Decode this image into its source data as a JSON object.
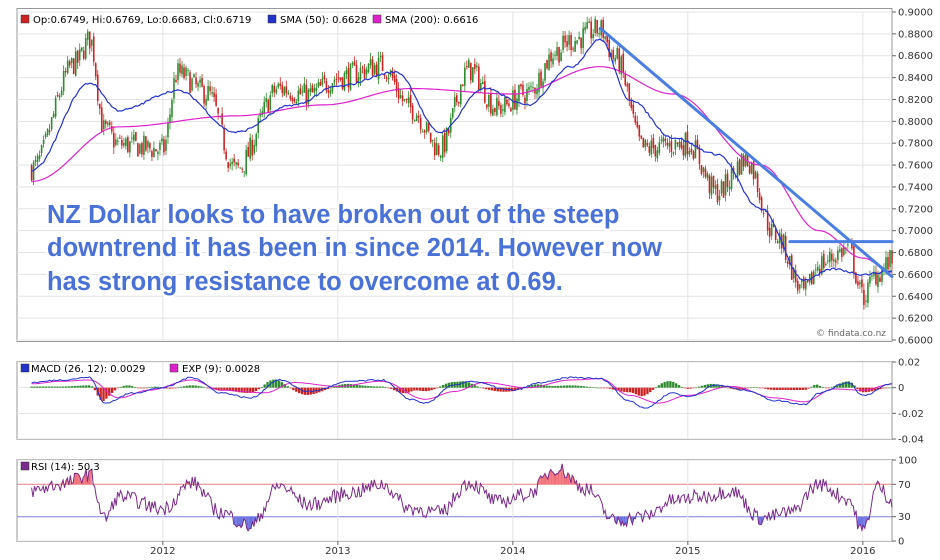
{
  "chart_data": [
    {
      "type": "line",
      "panel": "price",
      "series": [
        {
          "name": "Price",
          "color": "#cc2222",
          "up_color": "#2e8b2e",
          "x": [
            "2011-04",
            "2011-07",
            "2011-08",
            "2011-09",
            "2011-10",
            "2012-01",
            "2012-02",
            "2012-04",
            "2012-06",
            "2012-09",
            "2012-11",
            "2013-01",
            "2013-04",
            "2013-06",
            "2013-08",
            "2013-10",
            "2013-12",
            "2014-02",
            "2014-04",
            "2014-05",
            "2014-07",
            "2014-08",
            "2014-10",
            "2015-01",
            "2015-03",
            "2015-05",
            "2015-07",
            "2015-09",
            "2015-10",
            "2015-12",
            "2016-01",
            "2016-02",
            "2016-03"
          ],
          "values": [
            0.757,
            0.853,
            0.875,
            0.792,
            0.779,
            0.774,
            0.844,
            0.826,
            0.756,
            0.83,
            0.824,
            0.84,
            0.851,
            0.812,
            0.775,
            0.847,
            0.812,
            0.826,
            0.864,
            0.874,
            0.884,
            0.858,
            0.775,
            0.78,
            0.735,
            0.765,
            0.696,
            0.643,
            0.67,
            0.683,
            0.64,
            0.661,
            0.672
          ]
        },
        {
          "name": "SMA (50)",
          "color": "#2233cc",
          "x": [
            "2011-04",
            "2011-08",
            "2011-10",
            "2012-02",
            "2012-06",
            "2012-10",
            "2013-01",
            "2013-05",
            "2013-08",
            "2013-11",
            "2014-02",
            "2014-05",
            "2014-07",
            "2014-09",
            "2014-12",
            "2015-03",
            "2015-06",
            "2015-09",
            "2015-11",
            "2016-01",
            "2016-03"
          ],
          "values": [
            0.755,
            0.835,
            0.81,
            0.828,
            0.79,
            0.815,
            0.832,
            0.845,
            0.79,
            0.83,
            0.815,
            0.85,
            0.875,
            0.82,
            0.785,
            0.77,
            0.72,
            0.655,
            0.665,
            0.66,
            0.663
          ]
        },
        {
          "name": "SMA (200)",
          "color": "#dd22cc",
          "x": [
            "2011-04",
            "2011-10",
            "2012-06",
            "2012-12",
            "2013-06",
            "2014-01",
            "2014-07",
            "2014-12",
            "2015-06",
            "2015-10",
            "2016-01",
            "2016-03"
          ],
          "values": [
            0.745,
            0.795,
            0.805,
            0.815,
            0.83,
            0.825,
            0.85,
            0.825,
            0.76,
            0.7,
            0.675,
            0.662
          ]
        }
      ],
      "ylim": [
        0.6,
        0.9
      ],
      "yticks": [
        "0.9000",
        "0.8800",
        "0.8600",
        "0.8400",
        "0.8200",
        "0.8000",
        "0.7800",
        "0.7600",
        "0.7400",
        "0.7200",
        "0.7000",
        "0.6800",
        "0.6600",
        "0.6400",
        "0.6200",
        "0.6000"
      ],
      "legend": {
        "ohlc": "Op:0.6749, Hi:0.6769, Lo:0.6683, Cl:0.6719",
        "sma50": "SMA (50): 0.6628",
        "sma200": "SMA (200): 0.6616"
      },
      "annotation": [
        "NZ Dollar looks to have broken out of the steep",
        "downtrend it has been in since 2014. However now",
        "has strong resistance to overcome at 0.69."
      ],
      "watermark": "© findata.co.nz",
      "trendlines": [
        {
          "color": "#4a7ee0",
          "from": {
            "x": "2014-07",
            "y": 0.885
          },
          "to": {
            "x": "2016-03",
            "y": 0.658
          }
        },
        {
          "color": "#4a7ee0",
          "from": {
            "x": "2015-08",
            "y": 0.69
          },
          "to": {
            "x": "2016-03",
            "y": 0.69
          }
        }
      ]
    },
    {
      "type": "line",
      "panel": "macd",
      "series": [
        {
          "name": "MACD (26, 12)",
          "color": "#2233cc",
          "x": [
            "2011-04",
            "2011-06",
            "2011-08",
            "2011-09",
            "2011-11",
            "2012-01",
            "2012-03",
            "2012-05",
            "2012-07",
            "2012-09",
            "2012-11",
            "2013-02",
            "2013-04",
            "2013-06",
            "2013-07",
            "2013-09",
            "2013-10",
            "2014-01",
            "2014-03",
            "2014-05",
            "2014-07",
            "2014-09",
            "2014-10",
            "2014-12",
            "2015-01",
            "2015-03",
            "2015-05",
            "2015-07",
            "2015-09",
            "2015-10",
            "2015-12",
            "2016-01",
            "2016-03"
          ],
          "values": [
            0.004,
            0.006,
            0.008,
            -0.012,
            -0.004,
            0.0,
            0.008,
            -0.004,
            -0.008,
            0.006,
            -0.003,
            0.005,
            0.006,
            -0.009,
            -0.012,
            0.002,
            0.005,
            -0.002,
            0.004,
            0.008,
            0.007,
            -0.01,
            -0.016,
            -0.004,
            -0.007,
            0.002,
            -0.002,
            -0.01,
            -0.013,
            -0.004,
            0.004,
            -0.006,
            0.0029
          ]
        },
        {
          "name": "EXP (9)",
          "color": "#dd22cc",
          "x": [
            "2011-04",
            "2011-06",
            "2011-08",
            "2011-10",
            "2011-12",
            "2012-03",
            "2012-05",
            "2012-08",
            "2012-10",
            "2013-01",
            "2013-04",
            "2013-07",
            "2013-09",
            "2013-11",
            "2014-02",
            "2014-05",
            "2014-07",
            "2014-09",
            "2014-11",
            "2015-01",
            "2015-04",
            "2015-07",
            "2015-09",
            "2015-11",
            "2016-01",
            "2016-03"
          ],
          "values": [
            0.003,
            0.005,
            0.006,
            -0.008,
            -0.002,
            0.006,
            -0.002,
            -0.004,
            0.004,
            0.001,
            0.005,
            -0.009,
            -0.003,
            0.004,
            0.0,
            0.006,
            0.007,
            -0.006,
            -0.012,
            -0.006,
            0.001,
            -0.008,
            -0.011,
            -0.001,
            -0.002,
            0.0028
          ]
        }
      ],
      "ylim": [
        -0.04,
        0.02
      ],
      "yticks": [
        "0.02",
        "0",
        "-0.02",
        "-0.04"
      ],
      "legend": {
        "macd": "MACD (26, 12): 0.0029",
        "exp": "EXP (9): 0.0028"
      }
    },
    {
      "type": "line",
      "panel": "rsi",
      "series": [
        {
          "name": "RSI (14)",
          "color": "#7a2a8a",
          "x": [
            "2011-04",
            "2011-06",
            "2011-08",
            "2011-09",
            "2011-10",
            "2012-01",
            "2012-03",
            "2012-05",
            "2012-07",
            "2012-09",
            "2012-11",
            "2013-02",
            "2013-04",
            "2013-06",
            "2013-08",
            "2013-10",
            "2013-12",
            "2014-02",
            "2014-04",
            "2014-06",
            "2014-08",
            "2014-10",
            "2014-12",
            "2015-02",
            "2015-04",
            "2015-06",
            "2015-08",
            "2015-10",
            "2015-12",
            "2016-01",
            "2016-02",
            "2016-03"
          ],
          "values": [
            62,
            70,
            82,
            28,
            55,
            40,
            72,
            35,
            18,
            68,
            45,
            60,
            70,
            40,
            35,
            72,
            48,
            58,
            90,
            65,
            25,
            30,
            50,
            55,
            62,
            28,
            35,
            70,
            52,
            12,
            68,
            50.3
          ]
        }
      ],
      "ylim": [
        0,
        100
      ],
      "yticks": [
        "100",
        "70",
        "30",
        "0"
      ],
      "legend": {
        "rsi": "RSI (14): 50.3"
      }
    }
  ],
  "xaxis": {
    "labels": [
      "2012",
      "2013",
      "2014",
      "2015",
      "2016"
    ],
    "ticks": [
      "2012-01",
      "2013-01",
      "2014-01",
      "2015-01",
      "2016-01"
    ],
    "range": [
      "2011-03",
      "2016-03"
    ]
  }
}
